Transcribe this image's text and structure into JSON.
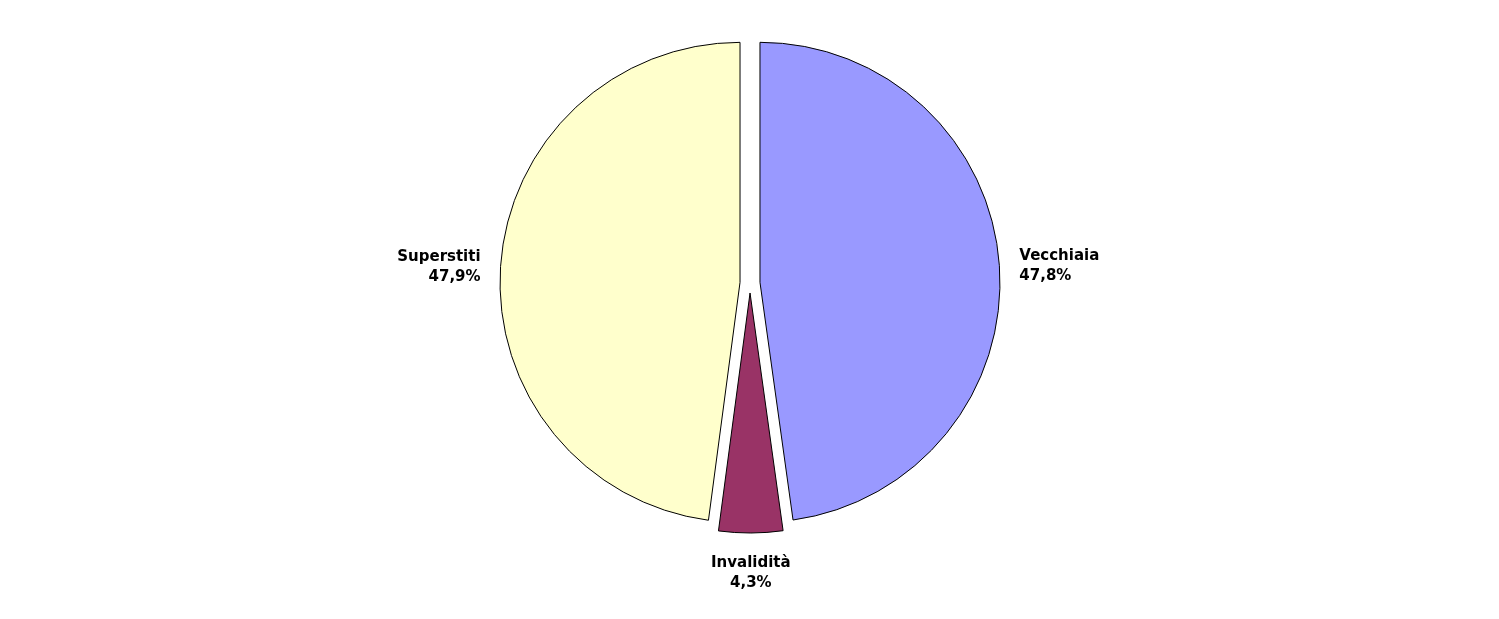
{
  "chart_data": {
    "type": "pie",
    "categories": [
      "Vecchiaia",
      "Invalidità",
      "Superstiti"
    ],
    "values": [
      47.8,
      4.3,
      47.9
    ],
    "value_labels": [
      "47,8%",
      "4,3%",
      "47,9%"
    ],
    "colors": [
      "#9999ff",
      "#993366",
      "#ffffcc"
    ]
  }
}
